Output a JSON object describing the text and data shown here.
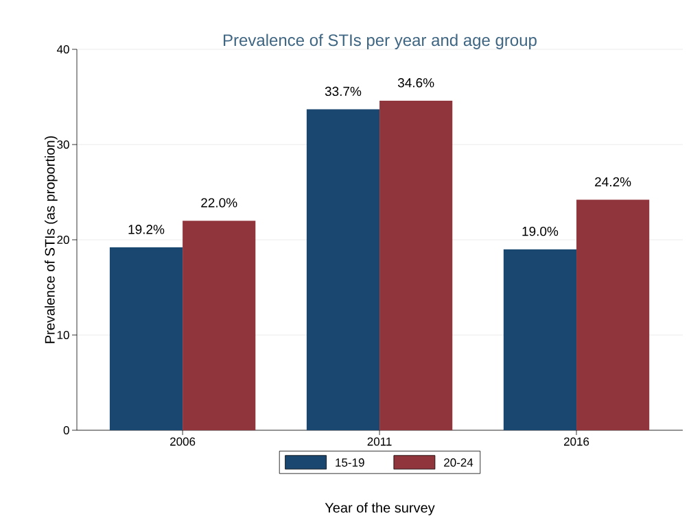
{
  "chart_data": {
    "type": "bar",
    "title": "Prevalence of STIs per year and age group",
    "xlabel": "Year of the survey",
    "ylabel": "Prevalence of STIs (as proportion)",
    "categories": [
      "2006",
      "2011",
      "2016"
    ],
    "series": [
      {
        "name": "15-19",
        "color": "#1a476f",
        "values": [
          19.2,
          33.7,
          19.0
        ],
        "value_labels": [
          "19.2%",
          "33.7%",
          "19.0%"
        ]
      },
      {
        "name": "20-24",
        "color": "#90353b",
        "values": [
          22.0,
          34.6,
          24.2
        ],
        "value_labels": [
          "22.0%",
          "34.6%",
          "24.2%"
        ]
      }
    ],
    "ylim": [
      0,
      40
    ],
    "yticks": [
      0,
      10,
      20,
      30,
      40
    ],
    "grid": "y",
    "legend": "bottom"
  }
}
